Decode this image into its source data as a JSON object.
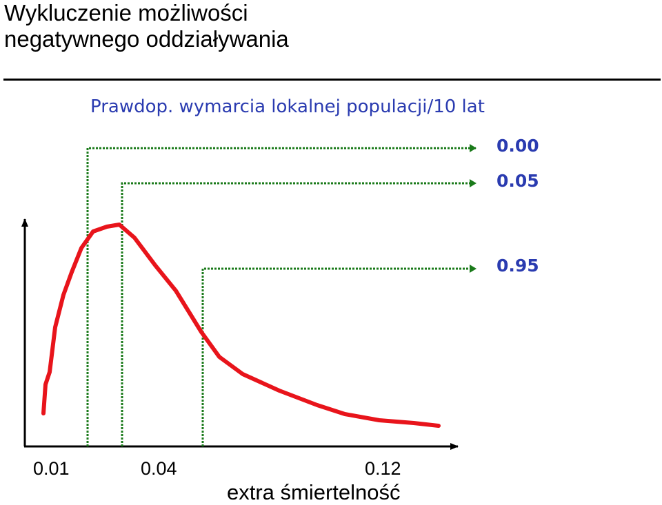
{
  "slide": {
    "title_line1": "Wykluczenie możliwości",
    "title_line2": "negatywnego oddziaływania"
  },
  "chart_data": {
    "type": "line",
    "title": "Prawdop. wymarcia lokalnej populacji/10 lat",
    "xlabel": "extra śmiertelność",
    "x_ticks": [
      "0.01",
      "0.04",
      "0.12"
    ],
    "extinction_probabilities": [
      "0.00",
      "0.05",
      "0.95"
    ],
    "colors": {
      "curve": "#e8141b",
      "guides": "#1a7a1a",
      "text_accent": "#2a3bb0",
      "axes": "#000000"
    }
  }
}
